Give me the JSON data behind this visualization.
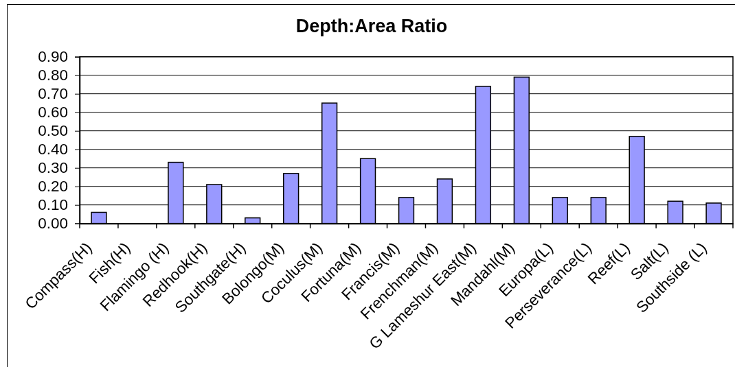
{
  "chart_data": {
    "type": "bar",
    "title": "Depth:Area Ratio",
    "categories": [
      "Compass(H)",
      "Fish(H)",
      "Flamingo (H)",
      "Redhook(H)",
      "Southgate(H)",
      "Bolongo(M)",
      "Coculus(M)",
      "Fortuna(M)",
      "Francis(M)",
      "Frenchman(M)",
      "G Lameshur East(M)",
      "Mandahl(M)",
      "Europa(L)",
      "Perseverance(L)",
      "Reef(L)",
      "Salt(L)",
      "Southside (L)"
    ],
    "values": [
      0.06,
      0,
      0.33,
      0.21,
      0.03,
      0.27,
      0.65,
      0.35,
      0.14,
      0.24,
      0.74,
      0.79,
      0.14,
      0.14,
      0.47,
      0.12,
      0.11
    ],
    "color": "#9999ff",
    "ylim": [
      0,
      0.9
    ],
    "yticks": [
      {
        "value": 0,
        "label": "0.00"
      },
      {
        "value": 0.1,
        "label": "0.10"
      },
      {
        "value": 0.2,
        "label": "0.20"
      },
      {
        "value": 0.3,
        "label": "0.30"
      },
      {
        "value": 0.4,
        "label": "0.40"
      },
      {
        "value": 0.5,
        "label": "0.50"
      },
      {
        "value": 0.6,
        "label": "0.60"
      },
      {
        "value": 0.7,
        "label": "0.70"
      },
      {
        "value": 0.8,
        "label": "0.80"
      },
      {
        "value": 0.9,
        "label": "0.90"
      }
    ],
    "grid": "y"
  }
}
